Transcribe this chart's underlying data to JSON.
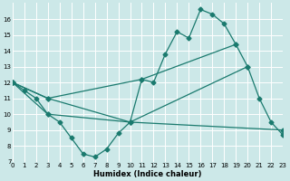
{
  "xlabel": "Humidex (Indice chaleur)",
  "background_color": "#cce8e8",
  "line_color": "#1a7a6e",
  "grid_color": "#ffffff",
  "xlim": [
    0,
    23
  ],
  "ylim": [
    7,
    17
  ],
  "xticks": [
    0,
    1,
    2,
    3,
    4,
    5,
    6,
    7,
    8,
    9,
    10,
    11,
    12,
    13,
    14,
    15,
    16,
    17,
    18,
    19,
    20,
    21,
    22,
    23
  ],
  "yticks": [
    7,
    8,
    9,
    10,
    11,
    12,
    13,
    14,
    15,
    16
  ],
  "line1_x": [
    0,
    1,
    2,
    3,
    4,
    5,
    6,
    7,
    8,
    9,
    10,
    11,
    12,
    13,
    14,
    15,
    16,
    17,
    18,
    19,
    20,
    21,
    22,
    23
  ],
  "line1_y": [
    12,
    11.5,
    11,
    10,
    9.5,
    8.5,
    7.5,
    7.3,
    7.8,
    8.8,
    9.5,
    12.2,
    12,
    13.8,
    15.2,
    14.8,
    16.6,
    16.3,
    15.7,
    14.4,
    13.0,
    11.0,
    9.5,
    8.7
  ],
  "line2_x": [
    0,
    3,
    11,
    19
  ],
  "line2_y": [
    12,
    11,
    12.2,
    14.4
  ],
  "line3_x": [
    0,
    3,
    10,
    20
  ],
  "line3_y": [
    12,
    11,
    9.5,
    13.0
  ],
  "line4_x": [
    0,
    3,
    10,
    23
  ],
  "line4_y": [
    12,
    10,
    9.5,
    9.0
  ]
}
